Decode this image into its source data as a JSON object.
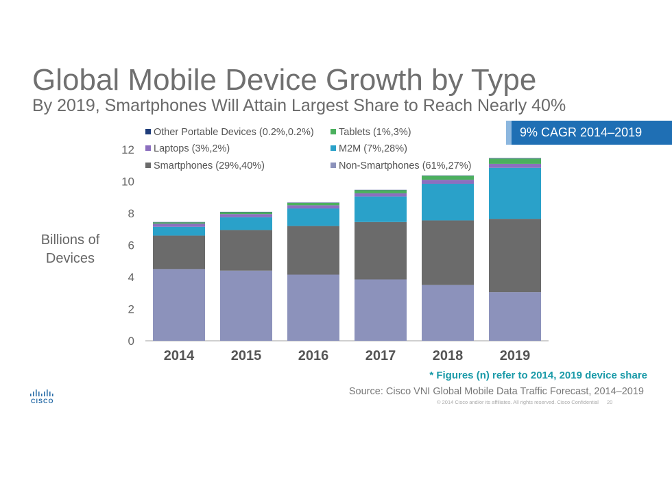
{
  "page": {
    "title": "Global Mobile Device Growth by Type",
    "subtitle": "By 2019, Smartphones Will Attain Largest Share to Reach Nearly 40%",
    "cagr_label": "9% CAGR 2014–2019",
    "footnote": "* Figures (n) refer to 2014, 2019 device share",
    "source": "Source: Cisco VNI Global Mobile Data Traffic Forecast, 2014–2019",
    "copyright": "© 2014  Cisco and/or its affiliates. All rights reserved.   Cisco Confidential",
    "page_number": "20",
    "logo_text": "CISCO"
  },
  "colors": {
    "title": "#707070",
    "cagr_box": "#1f6fb4",
    "footnote": "#1a9aa8"
  },
  "chart_data": {
    "type": "bar",
    "stacked": true,
    "title": "",
    "xlabel": "",
    "ylabel": "Billions of Devices",
    "ylim": [
      0,
      12
    ],
    "yticks": [
      0,
      2,
      4,
      6,
      8,
      10,
      12
    ],
    "categories": [
      "2014",
      "2015",
      "2016",
      "2017",
      "2018",
      "2019"
    ],
    "series": [
      {
        "name": "Non-Smartphones (61%,27%)",
        "color": "#8c92bb",
        "values": [
          4.5,
          4.4,
          4.15,
          3.85,
          3.5,
          3.05
        ]
      },
      {
        "name": "Smartphones (29%,40%)",
        "color": "#6b6b6b",
        "values": [
          2.1,
          2.55,
          3.05,
          3.6,
          4.05,
          4.6
        ]
      },
      {
        "name": "M2M (7%,28%)",
        "color": "#2aa1c9",
        "values": [
          0.55,
          0.8,
          1.1,
          1.6,
          2.3,
          3.2
        ]
      },
      {
        "name": "Laptops (3%,2%)",
        "color": "#8c6fbf",
        "values": [
          0.2,
          0.2,
          0.2,
          0.2,
          0.25,
          0.25
        ]
      },
      {
        "name": "Tablets (1%,3%)",
        "color": "#4bb05e",
        "values": [
          0.08,
          0.12,
          0.15,
          0.2,
          0.25,
          0.33
        ]
      },
      {
        "name": "Other Portable Devices (0.2%,0.2%)",
        "color": "#1f3d7a",
        "values": [
          0.02,
          0.02,
          0.02,
          0.02,
          0.02,
          0.03
        ]
      }
    ],
    "legend": [
      {
        "name": "Other Portable Devices (0.2%,0.2%)",
        "color": "#1f3d7a"
      },
      {
        "name": "Tablets (1%,3%)",
        "color": "#4bb05e"
      },
      {
        "name": "Laptops (3%,2%)",
        "color": "#8c6fbf"
      },
      {
        "name": "M2M (7%,28%)",
        "color": "#2aa1c9"
      },
      {
        "name": "Smartphones (29%,40%)",
        "color": "#6b6b6b"
      },
      {
        "name": "Non-Smartphones (61%,27%)",
        "color": "#8c92bb"
      }
    ]
  }
}
